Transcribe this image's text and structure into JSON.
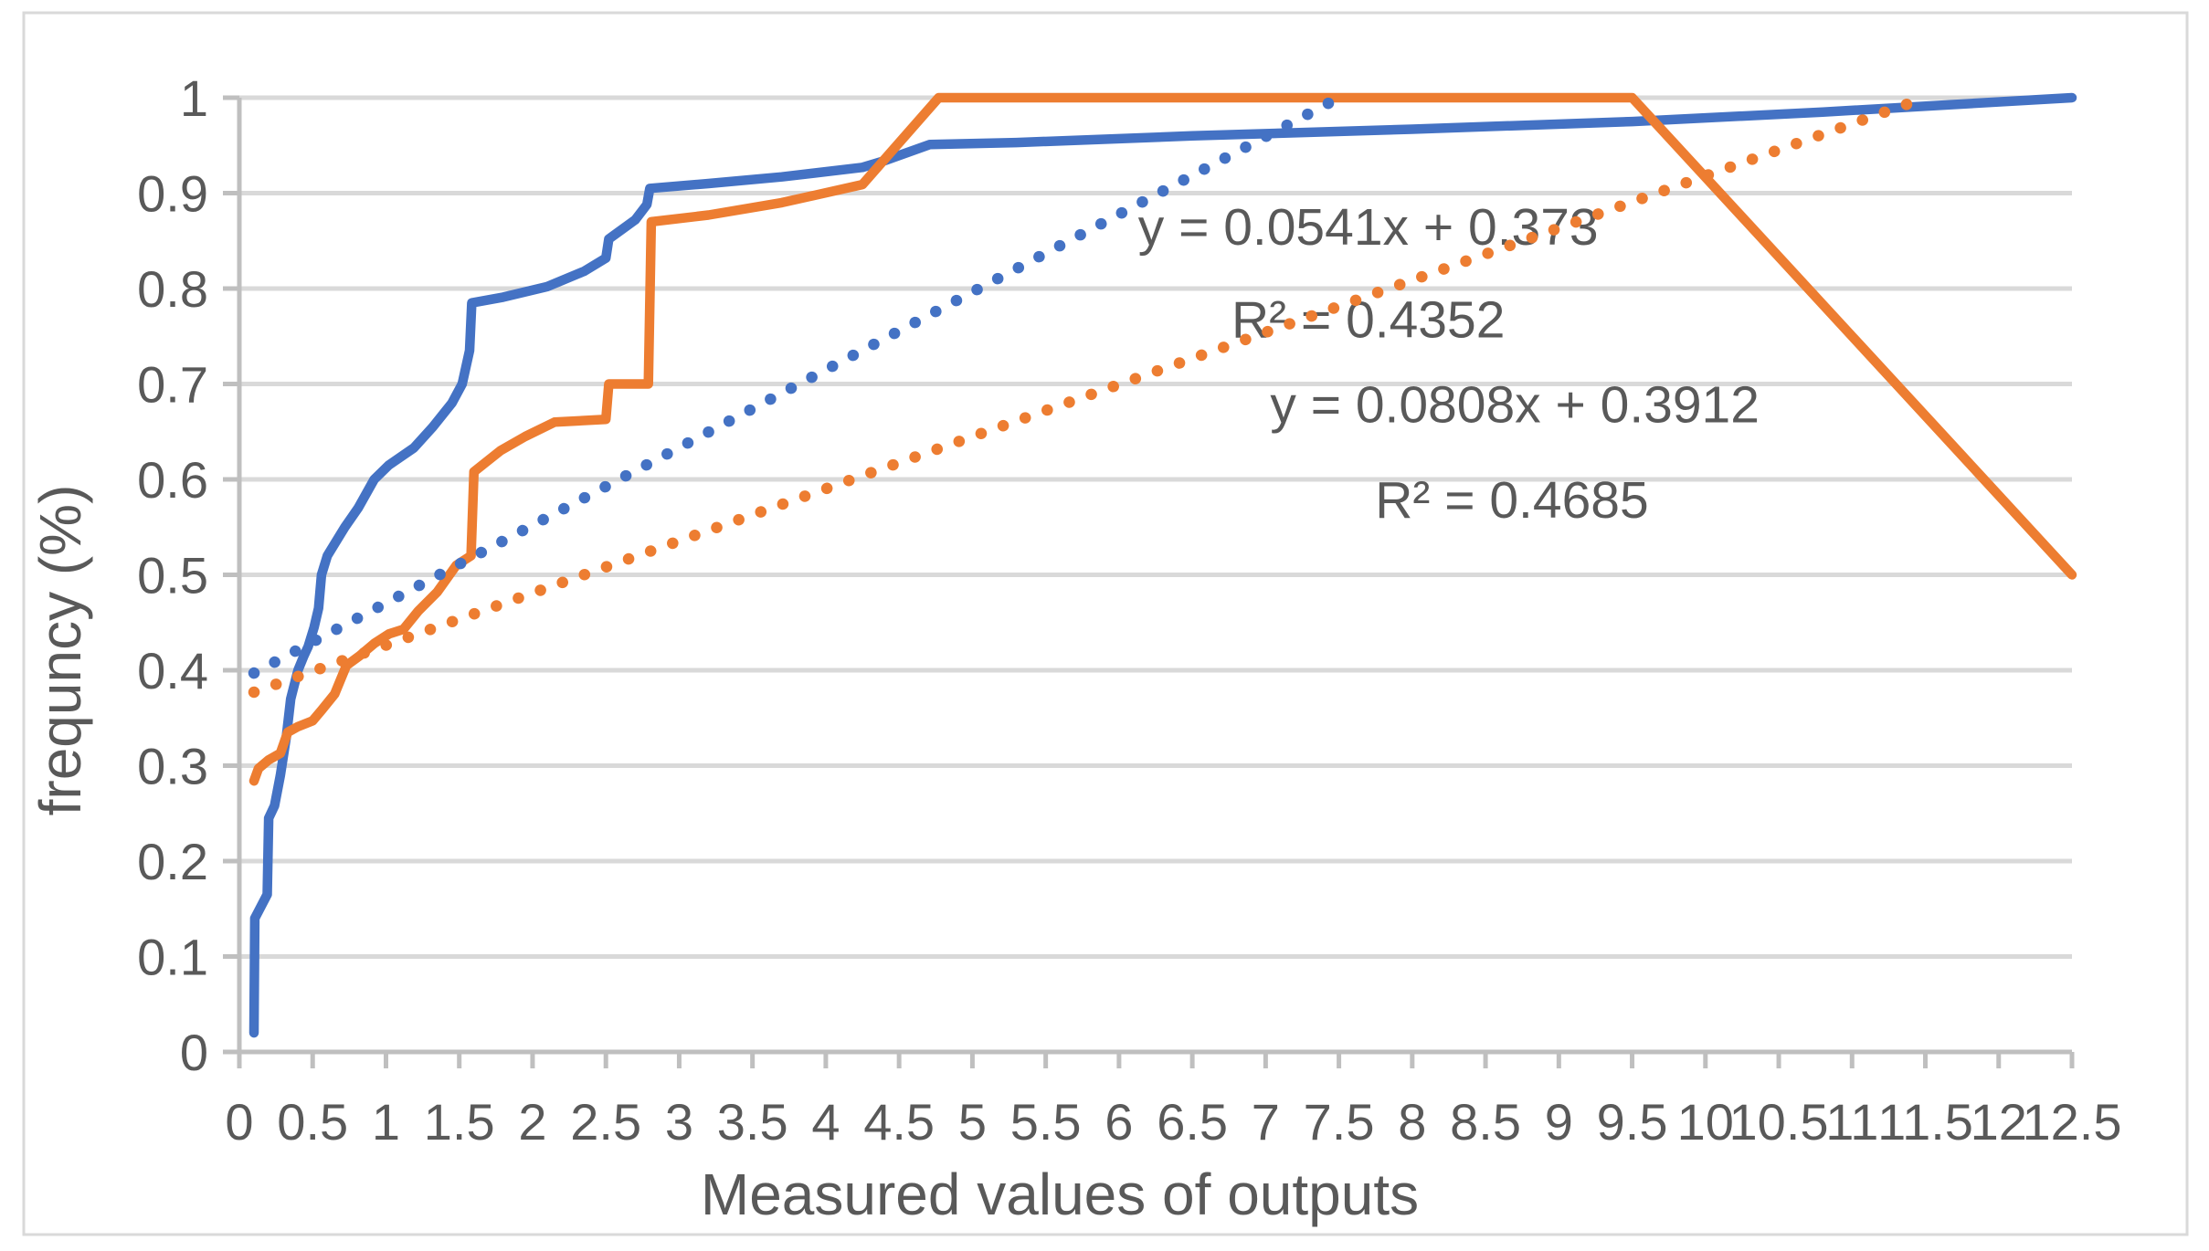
{
  "chart_data": {
    "type": "line",
    "title": "",
    "xlabel": "Measured values of outputs",
    "ylabel": "frequncy (%)",
    "xlim": [
      0,
      12.5
    ],
    "ylim": [
      0,
      1
    ],
    "grid": "horizontal",
    "legend": "none",
    "x_tick_labels": [
      "0",
      "0.5",
      "1",
      "1.5",
      "2",
      "2.5",
      "3",
      "3.5",
      "4",
      "4.5",
      "5",
      "5.5",
      "6",
      "6.5",
      "7",
      "7.5",
      "8",
      "8.5",
      "9",
      "9.5",
      "10",
      "10.5",
      "11",
      "11.5",
      "12",
      "12.5"
    ],
    "x_tick_values": [
      0,
      0.5,
      1,
      1.5,
      2,
      2.5,
      3,
      3.5,
      4,
      4.5,
      5,
      5.5,
      6,
      6.5,
      7,
      7.5,
      8,
      8.5,
      9,
      9.5,
      10,
      10.5,
      11,
      11.5,
      12,
      12.5
    ],
    "y_tick_labels": [
      "0",
      "0.1",
      "0.2",
      "0.3",
      "0.4",
      "0.5",
      "0.6",
      "0.7",
      "0.8",
      "0.9",
      "1"
    ],
    "y_tick_values": [
      0,
      0.1,
      0.2,
      0.3,
      0.4,
      0.5,
      0.6,
      0.7,
      0.8,
      0.9,
      1
    ],
    "series": [
      {
        "name": "blue-cumulative-curve",
        "style": "solid",
        "color": "#4472C4",
        "points": [
          [
            0.1,
            0.02
          ],
          [
            0.105,
            0.14
          ],
          [
            0.19,
            0.165
          ],
          [
            0.2,
            0.245
          ],
          [
            0.24,
            0.258
          ],
          [
            0.28,
            0.29
          ],
          [
            0.32,
            0.33
          ],
          [
            0.35,
            0.37
          ],
          [
            0.4,
            0.4
          ],
          [
            0.44,
            0.415
          ],
          [
            0.47,
            0.425
          ],
          [
            0.51,
            0.445
          ],
          [
            0.54,
            0.465
          ],
          [
            0.56,
            0.5
          ],
          [
            0.6,
            0.52
          ],
          [
            0.64,
            0.53
          ],
          [
            0.72,
            0.55
          ],
          [
            0.81,
            0.57
          ],
          [
            0.92,
            0.6
          ],
          [
            1.02,
            0.615
          ],
          [
            1.19,
            0.633
          ],
          [
            1.32,
            0.655
          ],
          [
            1.45,
            0.68
          ],
          [
            1.52,
            0.7
          ],
          [
            1.57,
            0.735
          ],
          [
            1.585,
            0.785
          ],
          [
            1.8,
            0.791
          ],
          [
            2.1,
            0.802
          ],
          [
            2.35,
            0.818
          ],
          [
            2.5,
            0.832
          ],
          [
            2.52,
            0.852
          ],
          [
            2.7,
            0.872
          ],
          [
            2.78,
            0.888
          ],
          [
            2.8,
            0.905
          ],
          [
            3.2,
            0.91
          ],
          [
            3.7,
            0.917
          ],
          [
            4.25,
            0.927
          ],
          [
            4.4,
            0.934
          ],
          [
            4.71,
            0.951
          ],
          [
            5.3,
            0.953
          ],
          [
            6.5,
            0.96
          ],
          [
            8.0,
            0.967
          ],
          [
            9.5,
            0.975
          ],
          [
            10.8,
            0.985
          ],
          [
            12.5,
            1.0
          ]
        ]
      },
      {
        "name": "orange-cumulative-curve",
        "style": "solid",
        "color": "#ED7D31",
        "points": [
          [
            0.1,
            0.284
          ],
          [
            0.13,
            0.297
          ],
          [
            0.2,
            0.306
          ],
          [
            0.28,
            0.313
          ],
          [
            0.33,
            0.335
          ],
          [
            0.4,
            0.341
          ],
          [
            0.5,
            0.347
          ],
          [
            0.56,
            0.358
          ],
          [
            0.65,
            0.375
          ],
          [
            0.73,
            0.405
          ],
          [
            0.82,
            0.415
          ],
          [
            0.92,
            0.428
          ],
          [
            1.02,
            0.438
          ],
          [
            1.12,
            0.443
          ],
          [
            1.22,
            0.462
          ],
          [
            1.35,
            0.482
          ],
          [
            1.48,
            0.51
          ],
          [
            1.58,
            0.52
          ],
          [
            1.6,
            0.608
          ],
          [
            1.78,
            0.63
          ],
          [
            1.95,
            0.645
          ],
          [
            2.15,
            0.66
          ],
          [
            2.5,
            0.663
          ],
          [
            2.52,
            0.7
          ],
          [
            2.79,
            0.7
          ],
          [
            2.81,
            0.87
          ],
          [
            3.2,
            0.877
          ],
          [
            3.7,
            0.89
          ],
          [
            4.25,
            0.909
          ],
          [
            4.77,
            1.0
          ],
          [
            9.5,
            1.0
          ],
          [
            12.5,
            0.5
          ]
        ]
      },
      {
        "name": "blue-linear-trendline",
        "style": "dotted",
        "color": "#4472C4",
        "points": [
          [
            0.1,
            0.397
          ],
          [
            7.5,
            1.0
          ]
        ]
      },
      {
        "name": "orange-linear-trendline",
        "style": "dotted",
        "color": "#ED7D31",
        "points": [
          [
            0.1,
            0.377
          ],
          [
            11.5,
            1.0
          ]
        ]
      }
    ],
    "annotations": [
      {
        "text": "y = 0.0541x + 0.373",
        "x": 7.7,
        "y": 0.865
      },
      {
        "text": "R² = 0.4352",
        "x": 7.7,
        "y": 0.768
      },
      {
        "text": "y = 0.0808x + 0.3912",
        "x": 8.7,
        "y": 0.679
      },
      {
        "text": "R² = 0.4685",
        "x": 8.68,
        "y": 0.579
      }
    ]
  },
  "colors": {
    "background": "#FFFFFF",
    "gridline": "#D9D9D9",
    "axis": "#BFBFBF",
    "text": "#595959",
    "border": "#D9D9D9",
    "series_blue": "#4472C4",
    "series_orange": "#ED7D31"
  }
}
